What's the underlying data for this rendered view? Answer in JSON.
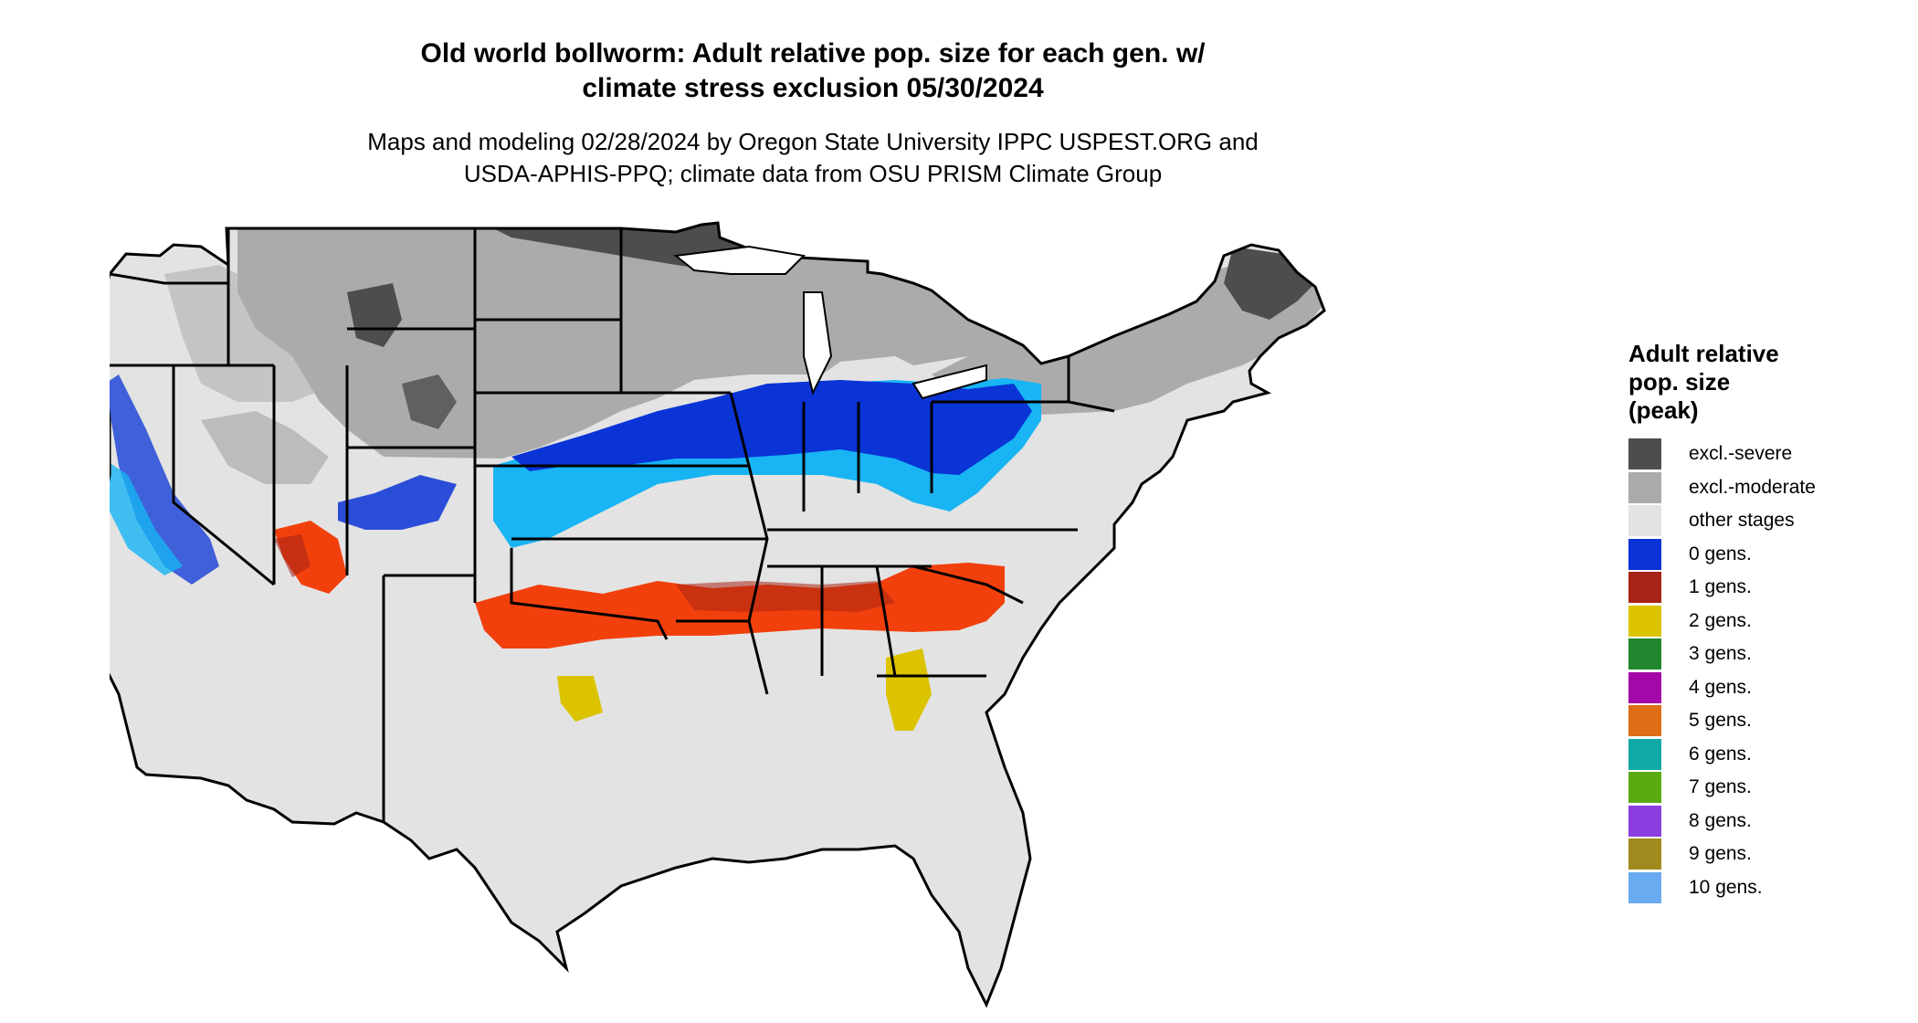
{
  "title": {
    "line1": "Old world bollworm: Adult relative pop. size for each gen. w/",
    "line2": "climate stress exclusion 05/30/2024"
  },
  "subtitle": {
    "line1": "Maps and modeling 02/28/2024 by Oregon State University IPPC USPEST.ORG and",
    "line2": "USDA-APHIS-PPQ; climate data from OSU PRISM Climate Group"
  },
  "legend": {
    "title_line1": "Adult relative",
    "title_line2": "pop. size",
    "title_line3": "(peak)",
    "items": [
      {
        "label": "excl.-severe",
        "color": "#4d4d4d"
      },
      {
        "label": "excl.-moderate",
        "color": "#ababab"
      },
      {
        "label": "other stages",
        "color": "#e3e3e3"
      },
      {
        "label": "0 gens.",
        "color": "#0a34d6"
      },
      {
        "label": "1 gens.",
        "color": "#a82416"
      },
      {
        "label": "2 gens.",
        "color": "#dcc300"
      },
      {
        "label": "3 gens.",
        "color": "#22862e"
      },
      {
        "label": "4 gens.",
        "color": "#a408a8"
      },
      {
        "label": "5 gens.",
        "color": "#dd6d16"
      },
      {
        "label": "6 gens.",
        "color": "#11aaa6"
      },
      {
        "label": "7 gens.",
        "color": "#5aaa12"
      },
      {
        "label": "8 gens.",
        "color": "#8c3ee0"
      },
      {
        "label": "9 gens.",
        "color": "#a08a1e"
      },
      {
        "label": "10 gens.",
        "color": "#6aaaf0"
      }
    ]
  },
  "map": {
    "colors": {
      "severe": "#4d4d4d",
      "moderate": "#ababab",
      "other": "#e3e3e3",
      "gen0_dark": "#0a34d6",
      "gen0_light": "#18b4f4",
      "gen1_red": "#f2400c",
      "gen1_dark": "#a82416",
      "gen2": "#dcc300",
      "border": "#000000"
    }
  }
}
